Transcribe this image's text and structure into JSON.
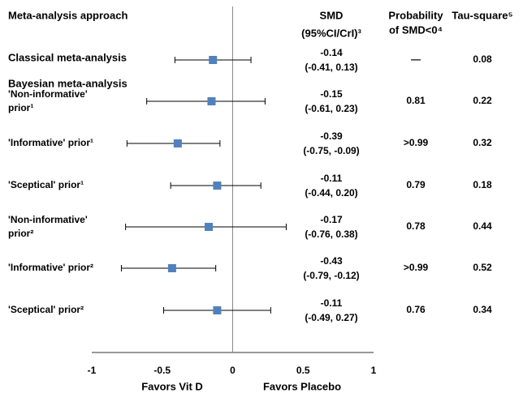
{
  "chart_data": {
    "type": "forest",
    "headers": {
      "label": [
        "Meta-analysis approach"
      ],
      "smd": [
        "SMD",
        "(95%CI/CrI)³"
      ],
      "probability": [
        "Probability",
        "of SMD<0⁴"
      ],
      "tau": [
        "Tau-square⁵"
      ]
    },
    "group_label": "Bayesian meta-analysis",
    "rows": [
      {
        "label": [
          "Classical meta-analysis"
        ],
        "smd": -0.14,
        "lower": -0.41,
        "upper": 0.13,
        "ci_label": "(-0.41, 0.13)",
        "probability": "—",
        "tau": 0.08
      },
      {
        "label": [
          "'Non-informative'",
          "prior¹"
        ],
        "smd": -0.15,
        "lower": -0.61,
        "upper": 0.23,
        "ci_label": "(-0.61, 0.23)",
        "probability": "0.81",
        "tau": 0.22
      },
      {
        "label": [
          "'Informative' prior¹"
        ],
        "smd": -0.39,
        "lower": -0.75,
        "upper": -0.09,
        "ci_label": "(-0.75, -0.09)",
        "probability": ">0.99",
        "tau": 0.32
      },
      {
        "label": [
          "'Sceptical' prior¹"
        ],
        "smd": -0.11,
        "lower": -0.44,
        "upper": 0.2,
        "ci_label": "(-0.44, 0.20)",
        "probability": "0.79",
        "tau": 0.18
      },
      {
        "label": [
          "'Non-informative'",
          "prior²"
        ],
        "smd": -0.17,
        "lower": -0.76,
        "upper": 0.38,
        "ci_label": "(-0.76, 0.38)",
        "probability": "0.78",
        "tau": 0.44
      },
      {
        "label": [
          "'Informative' prior²"
        ],
        "smd": -0.43,
        "lower": -0.79,
        "upper": -0.12,
        "ci_label": "(-0.79, -0.12)",
        "probability": ">0.99",
        "tau": 0.52
      },
      {
        "label": [
          "'Sceptical' prior²"
        ],
        "smd": -0.11,
        "lower": -0.49,
        "upper": 0.27,
        "ci_label": "(-0.49, 0.27)",
        "probability": "0.76",
        "tau": 0.34
      }
    ],
    "marker_color": "#4f81bd",
    "xlim": [
      -1,
      1
    ],
    "xticks": [
      -1,
      -0.5,
      0,
      0.5,
      1
    ],
    "x_annotations": [
      "Favors Vit D",
      "Favors Placebo"
    ]
  }
}
